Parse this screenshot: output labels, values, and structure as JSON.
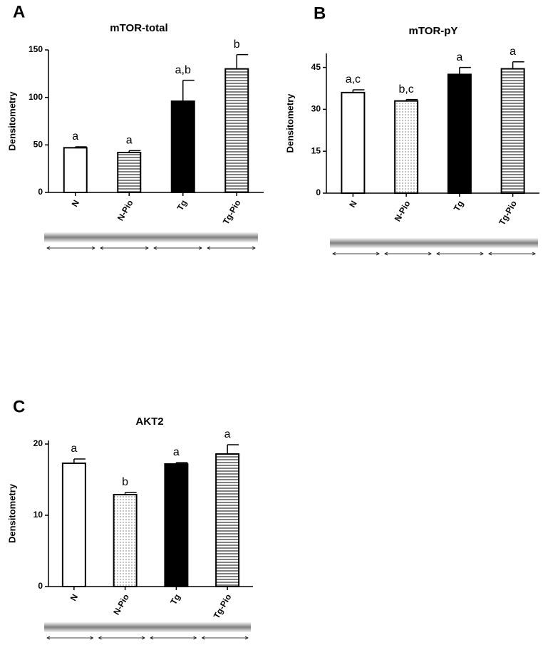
{
  "chart_data": [
    {
      "type": "bar",
      "panel": "A",
      "title": "mTOR-total",
      "ylabel": "Densitometry",
      "categories": [
        "N",
        "N-Pio",
        "Tg",
        "Tg-Pio"
      ],
      "values": [
        47,
        42,
        96,
        130
      ],
      "errors": [
        1,
        2,
        22,
        15
      ],
      "annotations": [
        "a",
        "a",
        "a,b",
        "b"
      ],
      "fills": [
        "white",
        "hstripe",
        "black",
        "hstripe"
      ],
      "ylim": [
        0,
        150
      ],
      "yticks": [
        0,
        50,
        100,
        150
      ]
    },
    {
      "type": "bar",
      "panel": "B",
      "title": "mTOR-pY",
      "ylabel": "Densitometry",
      "categories": [
        "N",
        "N-Pio",
        "Tg",
        "Tg-Pio"
      ],
      "values": [
        36,
        33,
        42.5,
        44.5
      ],
      "errors": [
        1,
        0.5,
        2.5,
        2.5
      ],
      "annotations": [
        "a,c",
        "b,c",
        "a",
        "a"
      ],
      "fills": [
        "white",
        "dots",
        "black",
        "hstripe"
      ],
      "ylim": [
        0,
        50
      ],
      "yticks": [
        0,
        15,
        30,
        45
      ]
    },
    {
      "type": "bar",
      "panel": "C",
      "title": "AKT2",
      "ylabel": "Densitometry",
      "categories": [
        "N",
        "N-Pio",
        "Tg",
        "Tg-Pio"
      ],
      "values": [
        17.3,
        12.9,
        17.2,
        18.6
      ],
      "errors": [
        0.6,
        0.3,
        0.2,
        1.3
      ],
      "annotations": [
        "a",
        "b",
        "a",
        "a"
      ],
      "fills": [
        "white",
        "dots",
        "black",
        "hstripe"
      ],
      "ylim": [
        0,
        20.5
      ],
      "yticks": [
        0,
        10,
        20
      ]
    }
  ]
}
